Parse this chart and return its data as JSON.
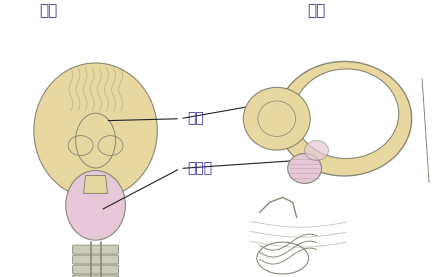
{
  "title_left": "正面",
  "title_right": "側面",
  "label_bladder": "膀胱",
  "label_prostate": "前立腺",
  "bg_color": "#ffffff",
  "bladder_color": "#e8d8a0",
  "prostate_color": "#e8c8d8",
  "outline_color": "#888877",
  "line_color": "#222222",
  "text_color": "#333399",
  "title_fontsize": 11,
  "label_fontsize": 10
}
